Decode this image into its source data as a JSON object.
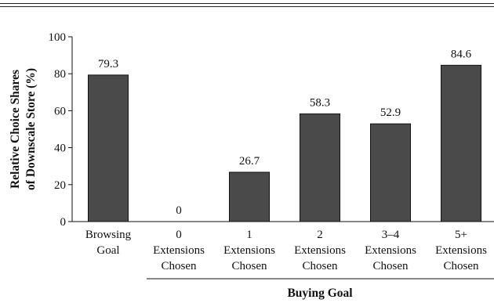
{
  "chart_data": {
    "type": "bar",
    "categories": [
      [
        "Browsing",
        "Goal"
      ],
      [
        "0",
        "Extensions",
        "Chosen"
      ],
      [
        "1",
        "Extensions",
        "Chosen"
      ],
      [
        "2",
        "Extensions",
        "Chosen"
      ],
      [
        "3–4",
        "Extensions",
        "Chosen"
      ],
      [
        "5+",
        "Extensions",
        "Chosen"
      ]
    ],
    "values": [
      79.3,
      0,
      26.7,
      58.3,
      52.9,
      84.6
    ],
    "value_labels": [
      "79.3",
      "0",
      "26.7",
      "58.3",
      "52.9",
      "84.6"
    ],
    "ylabel_lines": [
      "Relative Choice Shares",
      "of Downscale Store (%)"
    ],
    "group_label": "Buying Goal",
    "ylim": [
      0,
      100
    ],
    "yticks": [
      0,
      20,
      40,
      60,
      80,
      100
    ],
    "bar_color": "#4a4a4a",
    "grid": false,
    "legend": "none"
  }
}
